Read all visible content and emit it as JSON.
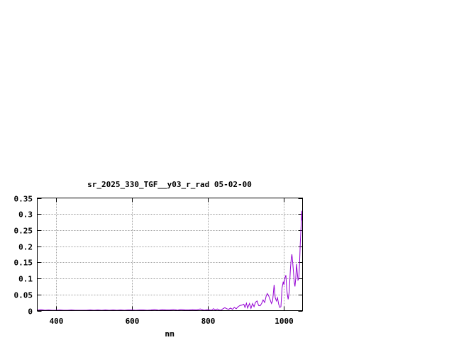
{
  "chart_data": {
    "type": "line",
    "title": "sr_2025_330_TGF__y03_r_rad 05-02-00",
    "xlabel": "nm",
    "ylabel": "",
    "xlim": [
      350,
      1050
    ],
    "ylim": [
      0,
      0.35
    ],
    "xticks": [
      400,
      600,
      800,
      1000
    ],
    "xtick_labels": [
      "400",
      "600",
      "800",
      "1000"
    ],
    "yticks": [
      0,
      0.05,
      0.1,
      0.15,
      0.2,
      0.25,
      0.3,
      0.35
    ],
    "ytick_labels": [
      "0",
      "0.05",
      "0.1",
      "0.15",
      "0.2",
      "0.25",
      "0.3",
      "0.35"
    ],
    "grid": true,
    "line_color": "#9400d3",
    "series": [
      {
        "x": [
          350,
          360,
          370,
          380,
          390,
          400,
          410,
          420,
          430,
          440,
          450,
          460,
          470,
          480,
          490,
          500,
          510,
          520,
          530,
          540,
          550,
          560,
          570,
          580,
          590,
          600,
          610,
          620,
          630,
          640,
          650,
          660,
          670,
          680,
          690,
          700,
          710,
          720,
          730,
          740,
          750,
          760,
          770,
          780,
          790,
          800,
          805,
          810,
          815,
          820,
          825,
          830,
          835,
          840,
          845,
          850,
          855,
          860,
          865,
          870,
          875,
          880,
          885,
          890,
          895,
          898,
          902,
          905,
          910,
          914,
          918,
          922,
          926,
          930,
          934,
          938,
          942,
          946,
          950,
          954,
          957,
          960,
          964,
          968,
          971,
          975,
          978,
          981,
          984,
          987,
          990,
          993,
          996,
          999,
          1001,
          1003,
          1006,
          1008,
          1010,
          1012,
          1015,
          1018,
          1020,
          1022,
          1024,
          1026,
          1028,
          1030,
          1032,
          1034,
          1036,
          1038,
          1040,
          1042,
          1044,
          1046,
          1048,
          1049,
          1050
        ],
        "y": [
          0.001,
          0.003,
          0.001,
          0.002,
          0.001,
          0.001,
          0.002,
          0.001,
          0.001,
          0.002,
          0.001,
          0.001,
          0.001,
          0.001,
          0.002,
          0.001,
          0.002,
          0.001,
          0.002,
          0.001,
          0.002,
          0.001,
          0.002,
          0.001,
          0.002,
          0.002,
          0.001,
          0.002,
          0.002,
          0.001,
          0.002,
          0.004,
          0.001,
          0.003,
          0.002,
          0.002,
          0.004,
          0.001,
          0.004,
          0.002,
          0.002,
          0.003,
          0.002,
          0.005,
          0.001,
          0.003,
          0.002,
          0.001,
          0.006,
          0.002,
          0.005,
          0.002,
          0.001,
          0.006,
          0.009,
          0.006,
          0.004,
          0.008,
          0.004,
          0.01,
          0.006,
          0.012,
          0.016,
          0.017,
          0.02,
          0.01,
          0.023,
          0.008,
          0.022,
          0.007,
          0.022,
          0.012,
          0.026,
          0.03,
          0.016,
          0.015,
          0.022,
          0.033,
          0.025,
          0.045,
          0.053,
          0.048,
          0.035,
          0.022,
          0.03,
          0.08,
          0.04,
          0.03,
          0.04,
          0.02,
          0.01,
          0.012,
          0.07,
          0.09,
          0.08,
          0.1,
          0.11,
          0.07,
          0.05,
          0.035,
          0.06,
          0.13,
          0.16,
          0.175,
          0.15,
          0.12,
          0.09,
          0.075,
          0.1,
          0.145,
          0.12,
          0.095,
          0.1,
          0.14,
          0.21,
          0.26,
          0.31,
          0.28,
          0.3
        ]
      }
    ]
  }
}
